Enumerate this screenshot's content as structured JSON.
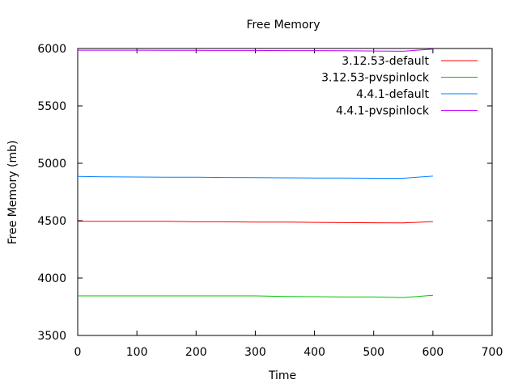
{
  "chart_data": {
    "type": "line",
    "title": "Free Memory",
    "xlabel": "Time",
    "ylabel": "Free Memory (mb)",
    "xlim": [
      0,
      700
    ],
    "ylim": [
      3500,
      6000
    ],
    "xticks": [
      0,
      100,
      200,
      300,
      400,
      500,
      600,
      700
    ],
    "yticks": [
      3500,
      4000,
      4500,
      5000,
      5500,
      6000
    ],
    "x_tick_labels": [
      "0",
      "100",
      "200",
      "300",
      "400",
      "500",
      "600",
      "700"
    ],
    "y_tick_labels": [
      "3500",
      "4000",
      "4500",
      "5000",
      "5500",
      "6000"
    ],
    "grid": false,
    "legend_position": "top-right",
    "x": [
      0,
      50,
      100,
      150,
      200,
      250,
      300,
      350,
      400,
      450,
      500,
      550,
      600
    ],
    "series": [
      {
        "name": "3.12.53-default",
        "color": "#ff0000",
        "values": [
          4495,
          4495,
          4495,
          4495,
          4490,
          4490,
          4488,
          4488,
          4485,
          4483,
          4482,
          4480,
          4492
        ]
      },
      {
        "name": "3.12.53-pvspinlock",
        "color": "#00c000",
        "values": [
          3845,
          3845,
          3845,
          3845,
          3845,
          3845,
          3845,
          3840,
          3838,
          3835,
          3835,
          3830,
          3850
        ]
      },
      {
        "name": "4.4.1-default",
        "color": "#0080ff",
        "values": [
          4885,
          4882,
          4880,
          4878,
          4878,
          4876,
          4875,
          4873,
          4872,
          4872,
          4870,
          4870,
          4888
        ]
      },
      {
        "name": "4.4.1-pvspinlock",
        "color": "#c000ff",
        "values": [
          5985,
          5985,
          5985,
          5984,
          5984,
          5983,
          5983,
          5982,
          5982,
          5980,
          5978,
          5976,
          5995
        ]
      }
    ]
  }
}
